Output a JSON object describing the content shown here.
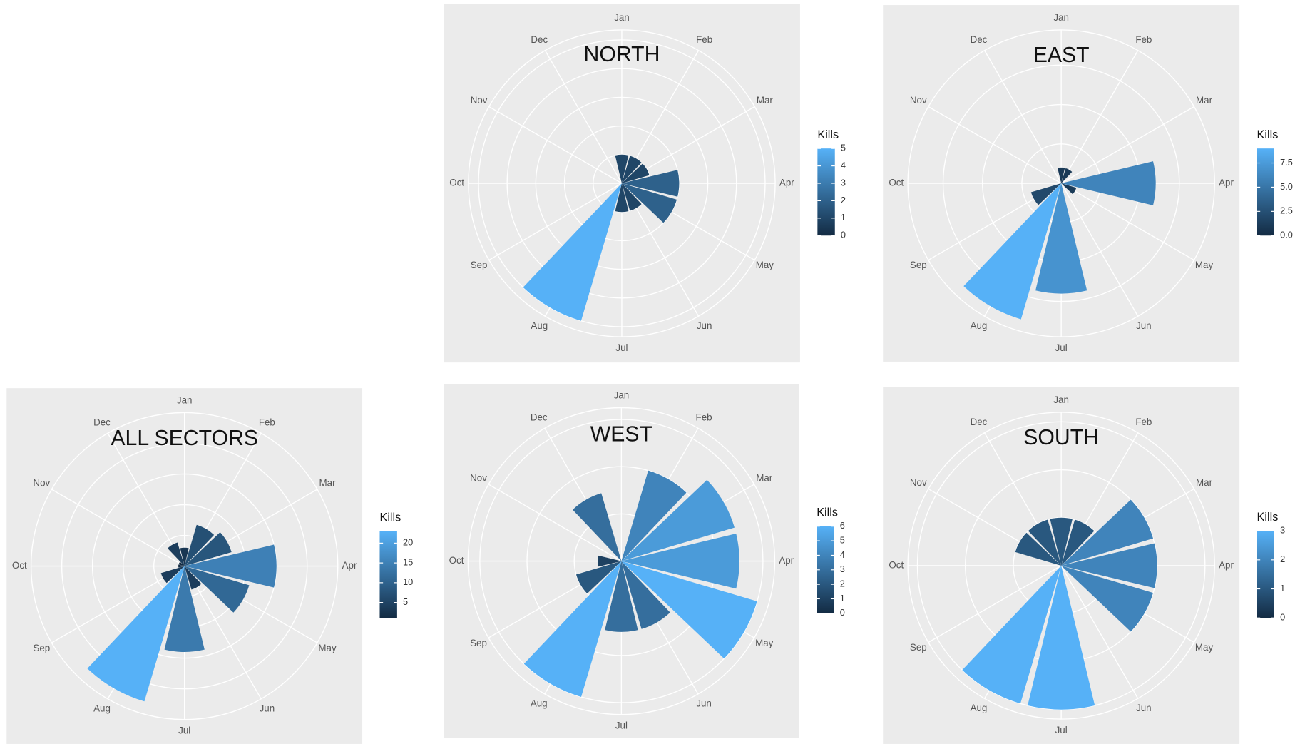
{
  "chart_data": [
    {
      "type": "polar_bar",
      "title": "NORTH",
      "legend_title": "Kills",
      "categories": [
        "Jan",
        "Feb",
        "Mar",
        "Apr",
        "May",
        "Jun",
        "Jul",
        "Aug",
        "Sep",
        "Oct",
        "Nov",
        "Dec"
      ],
      "values": [
        1,
        1,
        1,
        2,
        2,
        1,
        1,
        5,
        0,
        0,
        0,
        0
      ],
      "ylim": [
        0,
        5.35
      ],
      "yticks": [
        1,
        2,
        3,
        4,
        5
      ],
      "colorbar_ticks": [
        0,
        1,
        2,
        3,
        4,
        5
      ],
      "low_color": "#132B43",
      "high_color": "#56B1F7"
    },
    {
      "type": "polar_bar",
      "title": "EAST",
      "legend_title": "Kills",
      "categories": [
        "Jan",
        "Feb",
        "Mar",
        "Apr",
        "May",
        "Jun",
        "Jul",
        "Aug",
        "Sep",
        "Oct",
        "Nov",
        "Dec"
      ],
      "values": [
        1,
        1,
        0,
        6,
        1,
        0,
        7,
        9,
        2,
        0,
        0,
        0
      ],
      "ylim": [
        0,
        9.74
      ],
      "yticks": [
        2.5,
        5,
        7.5
      ],
      "colorbar_ticks": [
        {
          "value": 0,
          "label": "0.0"
        },
        {
          "value": 2.5,
          "label": "2.5"
        },
        {
          "value": 5,
          "label": "5.0"
        },
        {
          "value": 7.5,
          "label": "7.5"
        }
      ],
      "low_color": "#132B43",
      "high_color": "#56B1F7"
    },
    {
      "type": "polar_bar",
      "title": "ALL SECTORS",
      "legend_title": "Kills",
      "categories": [
        "Jan",
        "Feb",
        "Mar",
        "Apr",
        "May",
        "Jun",
        "Jul",
        "Aug",
        "Sep",
        "Oct",
        "Nov",
        "Dec"
      ],
      "values": [
        3,
        7,
        8,
        15,
        11,
        4,
        14,
        23,
        4,
        1,
        1,
        4
      ],
      "ylim": [
        0,
        25
      ],
      "yticks": [
        5,
        10,
        15,
        20
      ],
      "colorbar_ticks": [
        5,
        10,
        15,
        20
      ],
      "low_color": "#132B43",
      "high_color": "#56B1F7"
    },
    {
      "type": "polar_bar",
      "title": "WEST",
      "legend_title": "Kills",
      "categories": [
        "Jan",
        "Feb",
        "Mar",
        "Apr",
        "May",
        "Jun",
        "Jul",
        "Aug",
        "Sep",
        "Oct",
        "Nov",
        "Dec"
      ],
      "values": [
        0,
        4,
        5,
        5,
        6,
        3,
        3,
        6,
        2,
        1,
        0,
        3
      ],
      "ylim": [
        0,
        6.5
      ],
      "yticks": [
        2,
        4,
        6
      ],
      "colorbar_ticks": [
        0,
        1,
        2,
        3,
        4,
        5,
        6
      ],
      "low_color": "#132B43",
      "high_color": "#56B1F7"
    },
    {
      "type": "polar_bar",
      "title": "SOUTH",
      "legend_title": "Kills",
      "categories": [
        "Jan",
        "Feb",
        "Mar",
        "Apr",
        "May",
        "Jun",
        "Jul",
        "Aug",
        "Sep",
        "Oct",
        "Nov",
        "Dec"
      ],
      "values": [
        1,
        1,
        2,
        2,
        2,
        0,
        3,
        3,
        0,
        0,
        1,
        1
      ],
      "ylim": [
        0,
        3.2
      ],
      "yticks": [
        1,
        2,
        3
      ],
      "colorbar_ticks": [
        0,
        1,
        2,
        3
      ],
      "low_color": "#132B43",
      "high_color": "#56B1F7"
    }
  ]
}
